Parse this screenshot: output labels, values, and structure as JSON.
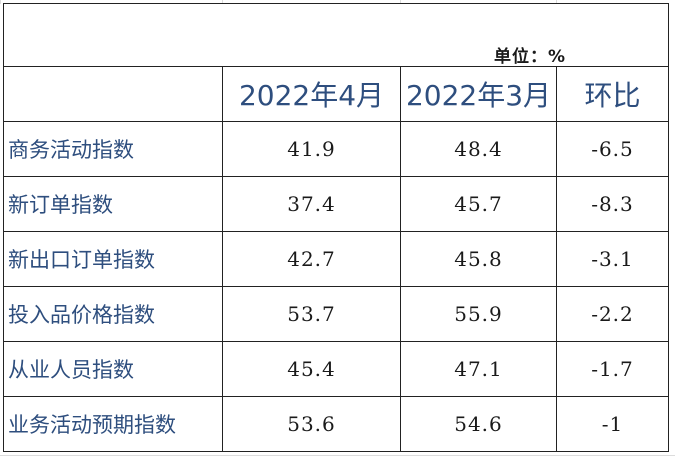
{
  "unit_label": "单位：%",
  "headers": {
    "col1": "2022年4月",
    "col2": "2022年3月",
    "col3": "环比"
  },
  "rows": [
    {
      "label": "商务活动指数",
      "apr": "41.9",
      "mar": "48.4",
      "mom": "-6.5"
    },
    {
      "label": "新订单指数",
      "apr": "37.4",
      "mar": "45.7",
      "mom": "-8.3"
    },
    {
      "label": "新出口订单指数",
      "apr": "42.7",
      "mar": "45.8",
      "mom": "-3.1"
    },
    {
      "label": "投入品价格指数",
      "apr": "53.7",
      "mar": "55.9",
      "mom": "-2.2"
    },
    {
      "label": "从业人员指数",
      "apr": "45.4",
      "mar": "47.1",
      "mom": "-1.7"
    },
    {
      "label": "业务活动预期指数",
      "apr": "53.6",
      "mar": "54.6",
      "mom": "-1"
    }
  ]
}
